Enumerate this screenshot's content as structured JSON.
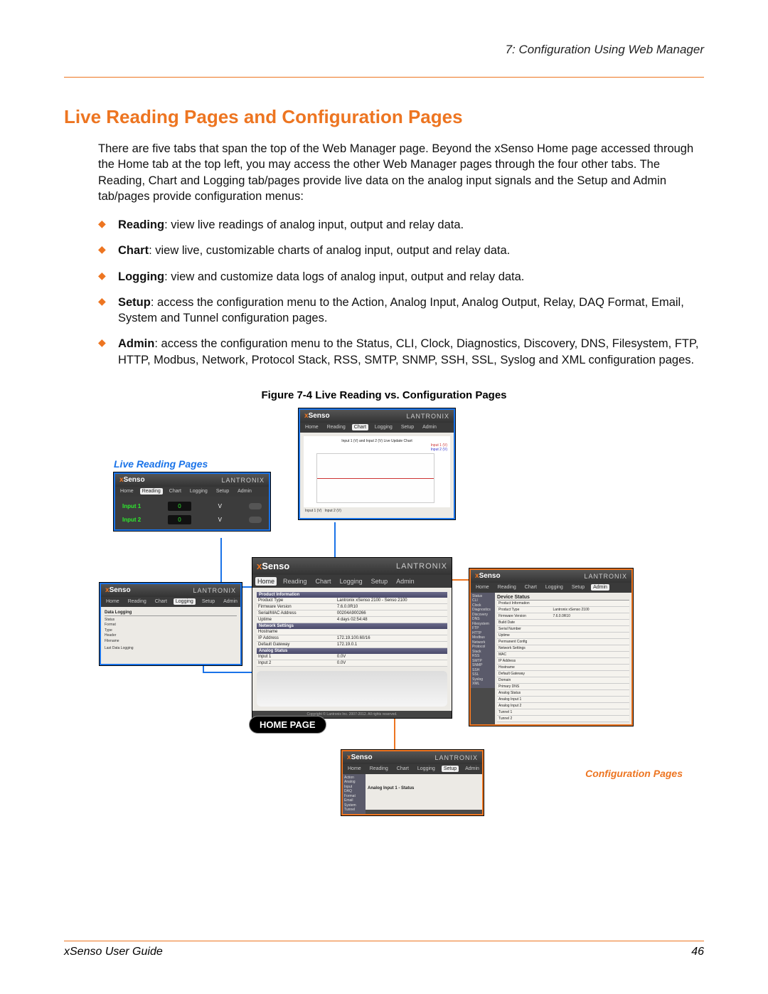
{
  "header": {
    "chapter": "7: Configuration Using Web Manager"
  },
  "title": "Live Reading Pages and Configuration Pages",
  "intro": "There are five tabs that span the top of the Web Manager page.  Beyond the xSenso Home page accessed through the Home tab at the top left, you may access the other Web Manager pages through the four other tabs.  The Reading, Chart and Logging tab/pages provide live data on the analog input signals and the Setup and Admin tab/pages provide configuration menus:",
  "bullets": [
    {
      "bold": "Reading",
      "text": ": view live readings of analog input, output and relay data."
    },
    {
      "bold": "Chart",
      "text": ": view live, customizable charts of analog input, output and relay data."
    },
    {
      "bold": "Logging",
      "text": ": view and customize data logs of analog input, output and relay data."
    },
    {
      "bold": "Setup",
      "text": ":  access the configuration menu to the Action, Analog Input, Analog Output, Relay, DAQ Format, Email, System and Tunnel configuration pages."
    },
    {
      "bold": "Admin",
      "text": ": access the configuration menu to the Status, CLI, Clock, Diagnostics, Discovery, DNS, Filesystem, FTP, HTTP, Modbus,  Network, Protocol Stack, RSS, SMTP, SNMP, SSH, SSL, Syslog and XML configuration pages."
    }
  ],
  "figure_caption": "Figure 7-4  Live Reading vs. Configuration Pages",
  "labels": {
    "live": "Live Reading Pages",
    "config": "Configuration Pages",
    "home": "HOME PAGE"
  },
  "brand": {
    "product": "xSenso",
    "company": "LANTRONIX"
  },
  "tabs": [
    "Home",
    "Reading",
    "Chart",
    "Logging",
    "Setup",
    "Admin"
  ],
  "reading_panel": {
    "inputs": [
      {
        "label": "Input 1",
        "value": "0",
        "unit": "V"
      },
      {
        "label": "Input 2",
        "value": "0",
        "unit": "V"
      }
    ]
  },
  "chart_panel": {
    "title": "Input 1 (V) and Input 2 (V) Live Update Chart",
    "legend": [
      "Input 1 (V)",
      "Input 2 (V)"
    ]
  },
  "logging_panel": {
    "heading": "Data Logging",
    "rows": [
      "Status",
      "Format",
      "Type",
      "Header",
      "Filename"
    ],
    "note": "Last Data Logging"
  },
  "home_panel": {
    "sections": {
      "product": {
        "title": "Product Information",
        "rows": [
          {
            "k": "Product Type",
            "v": "Lantronix xSenso 2100 - Senso 2100"
          },
          {
            "k": "Firmware Version",
            "v": "7.6.0.0R10"
          },
          {
            "k": "Serial/MAC Address",
            "v": "00204A900266"
          },
          {
            "k": "Uptime",
            "v": "4 days 02:54:48"
          }
        ]
      },
      "network": {
        "title": "Network Settings",
        "rows": [
          {
            "k": "Hostname",
            "v": ""
          },
          {
            "k": "IP Address",
            "v": "172.19.100.60/16"
          },
          {
            "k": "Default Gateway",
            "v": "172.19.0.1"
          }
        ]
      },
      "analog": {
        "title": "Analog Status",
        "rows": [
          {
            "k": "Input 1",
            "v": "0.0V"
          },
          {
            "k": "Input 2",
            "v": "0.0V"
          }
        ]
      }
    }
  },
  "setup_panel": {
    "side": [
      "Action",
      "Analog Input",
      "DAQ Format",
      "Email",
      "System",
      "Tunnel"
    ],
    "heading": "Analog Input 1 - Status"
  },
  "admin_panel": {
    "heading": "Device Status",
    "side": [
      "Status",
      "CLI",
      "Clock",
      "Diagnostics",
      "Discovery",
      "DNS",
      "Filesystem",
      "FTP",
      "HTTP",
      "Modbus",
      "Network",
      "Protocol Stack",
      "RSS",
      "SMTP",
      "SNMP",
      "SSH",
      "SSL",
      "Syslog",
      "XML"
    ],
    "rows": [
      {
        "k": "Product Information",
        "v": ""
      },
      {
        "k": "Product Type",
        "v": "Lantronix xSenso 2100"
      },
      {
        "k": "Firmware Version",
        "v": "7.6.0.0R10"
      },
      {
        "k": "Build Date",
        "v": ""
      },
      {
        "k": "Serial Number",
        "v": ""
      },
      {
        "k": "Uptime",
        "v": ""
      },
      {
        "k": "Permanent Config",
        "v": ""
      },
      {
        "k": "Network Settings",
        "v": ""
      },
      {
        "k": "MAC",
        "v": ""
      },
      {
        "k": "IP Address",
        "v": ""
      },
      {
        "k": "Hostname",
        "v": ""
      },
      {
        "k": "Default Gateway",
        "v": ""
      },
      {
        "k": "Domain",
        "v": ""
      },
      {
        "k": "Primary DNS",
        "v": ""
      },
      {
        "k": "Analog Status",
        "v": ""
      },
      {
        "k": "Analog Input 1",
        "v": ""
      },
      {
        "k": "Analog Input 2",
        "v": ""
      },
      {
        "k": "Tunnel 1",
        "v": ""
      },
      {
        "k": "Tunnel 2",
        "v": ""
      }
    ]
  },
  "footer": {
    "guide": "xSenso User Guide",
    "page": "46"
  }
}
